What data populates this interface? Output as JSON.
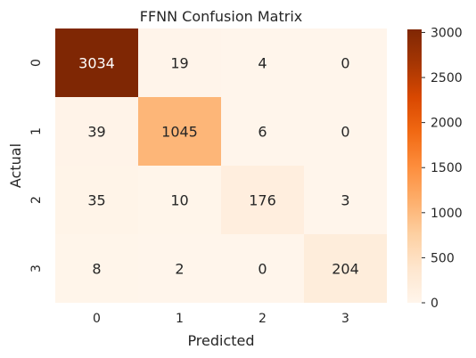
{
  "chart_data": {
    "type": "heatmap",
    "title": "FFNN Confusion Matrix",
    "xlabel": "Predicted",
    "ylabel": "Actual",
    "x_categories": [
      "0",
      "1",
      "2",
      "3"
    ],
    "y_categories": [
      "0",
      "1",
      "2",
      "3"
    ],
    "matrix": [
      [
        3034,
        19,
        4,
        0
      ],
      [
        39,
        1045,
        6,
        0
      ],
      [
        35,
        10,
        176,
        3
      ],
      [
        8,
        2,
        0,
        204
      ]
    ],
    "value_range": [
      0,
      3034
    ],
    "colorbar": {
      "ticks": [
        0,
        500,
        1000,
        1500,
        2000,
        2500,
        3000
      ],
      "tick_labels": [
        "0",
        "500",
        "1000",
        "1500",
        "2000",
        "2500",
        "3000"
      ]
    },
    "colormap": {
      "name": "Oranges",
      "stops": [
        "#fff5eb",
        "#fee6ce",
        "#fdd0a2",
        "#fdae6b",
        "#fd8d3c",
        "#f16913",
        "#d94801",
        "#a63603",
        "#7f2704"
      ]
    },
    "grid": false,
    "legend": "colorbar-right"
  }
}
